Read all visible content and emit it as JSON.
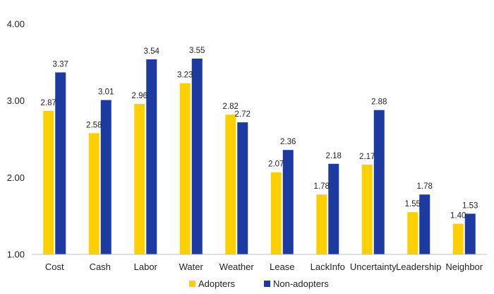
{
  "chart_data": {
    "type": "bar",
    "title": "",
    "xlabel": "",
    "ylabel": "",
    "ylim": [
      1.0,
      4.0
    ],
    "yticks": [
      "1.00",
      "2.00",
      "3.00",
      "4.00"
    ],
    "grid": false,
    "legend_position": "bottom",
    "categories": [
      "Cost",
      "Cash",
      "Labor",
      "Water",
      "Weather",
      "Lease",
      "LackInfo",
      "Uncertainty",
      "Leadership",
      "Neighbor"
    ],
    "series": [
      {
        "name": "Adopters",
        "color": "#ffd000",
        "values": [
          2.87,
          2.58,
          2.96,
          3.23,
          2.82,
          2.07,
          1.78,
          2.17,
          1.55,
          1.4
        ],
        "labels": [
          "2.87",
          "2.58",
          "2.96",
          "3.23",
          "2.82",
          "2.07",
          "1.78",
          "2.17",
          "1.55",
          "1.40"
        ]
      },
      {
        "name": "Non-adopters",
        "color": "#1c3aa0",
        "values": [
          3.37,
          3.01,
          3.54,
          3.55,
          2.72,
          2.36,
          2.18,
          2.88,
          1.78,
          1.53
        ],
        "labels": [
          "3.37",
          "3.01",
          "3.54",
          "3.55",
          "2.72",
          "2.36",
          "2.18",
          "2.88",
          "1.78",
          "1.53"
        ]
      }
    ]
  }
}
